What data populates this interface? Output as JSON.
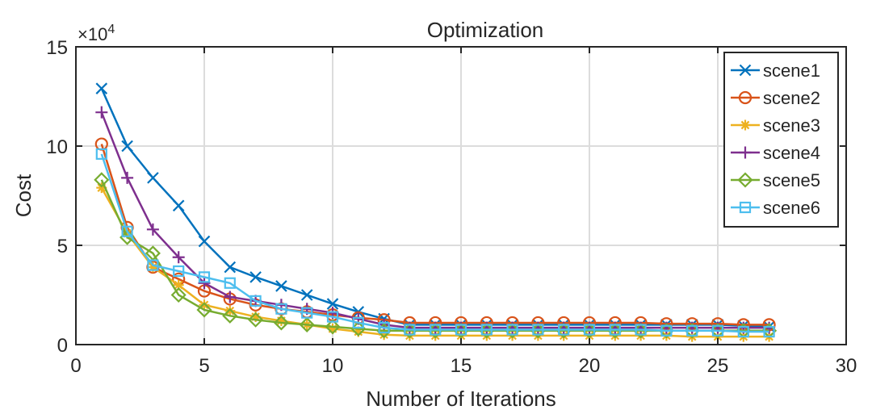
{
  "chart_data": {
    "type": "line",
    "title": "Optimization",
    "xlabel": "Number of Iterations",
    "ylabel": "Cost",
    "exponent_label": "×10",
    "exponent_power": "4",
    "xlim": [
      0,
      30
    ],
    "ylim": [
      0,
      15
    ],
    "y_scale_factor": 10000,
    "xticks": [
      0,
      5,
      10,
      15,
      20,
      25,
      30
    ],
    "yticks": [
      0,
      5,
      10,
      15
    ],
    "grid": true,
    "legend_position": "top-right",
    "x": [
      1,
      2,
      3,
      4,
      5,
      6,
      7,
      8,
      9,
      10,
      11,
      12,
      13,
      14,
      15,
      16,
      17,
      18,
      19,
      20,
      21,
      22,
      23,
      24,
      25,
      26,
      27
    ],
    "series": [
      {
        "name": "scene1",
        "color": "#0072BD",
        "marker": "x",
        "values": [
          12.9,
          10.0,
          8.4,
          7.0,
          5.2,
          3.9,
          3.4,
          2.95,
          2.5,
          2.05,
          1.65,
          1.3,
          1.0,
          1.0,
          1.0,
          1.0,
          1.0,
          1.0,
          1.0,
          1.0,
          1.0,
          1.0,
          1.0,
          1.0,
          1.0,
          0.95,
          0.9
        ]
      },
      {
        "name": "scene2",
        "color": "#D95319",
        "marker": "circle",
        "values": [
          10.1,
          5.9,
          3.9,
          3.3,
          2.7,
          2.3,
          2.0,
          1.8,
          1.65,
          1.5,
          1.35,
          1.25,
          1.1,
          1.1,
          1.1,
          1.1,
          1.1,
          1.1,
          1.1,
          1.1,
          1.1,
          1.1,
          1.05,
          1.05,
          1.05,
          1.0,
          1.0
        ]
      },
      {
        "name": "scene3",
        "color": "#EDB120",
        "marker": "asterisk",
        "values": [
          7.9,
          5.6,
          3.9,
          3.0,
          2.0,
          1.7,
          1.4,
          1.2,
          1.0,
          0.8,
          0.65,
          0.5,
          0.45,
          0.45,
          0.45,
          0.45,
          0.45,
          0.45,
          0.45,
          0.45,
          0.45,
          0.45,
          0.45,
          0.4,
          0.4,
          0.4,
          0.4
        ]
      },
      {
        "name": "scene4",
        "color": "#7E2F8E",
        "marker": "plus",
        "values": [
          11.7,
          8.4,
          5.8,
          4.4,
          3.1,
          2.4,
          2.2,
          2.0,
          1.8,
          1.6,
          1.3,
          1.0,
          0.85,
          0.85,
          0.85,
          0.85,
          0.85,
          0.85,
          0.85,
          0.85,
          0.85,
          0.85,
          0.85,
          0.85,
          0.85,
          0.85,
          0.85
        ]
      },
      {
        "name": "scene5",
        "color": "#77AC30",
        "marker": "diamond",
        "values": [
          8.3,
          5.4,
          4.6,
          2.5,
          1.75,
          1.45,
          1.25,
          1.1,
          1.0,
          0.9,
          0.8,
          0.7,
          0.7,
          0.7,
          0.7,
          0.7,
          0.7,
          0.7,
          0.7,
          0.7,
          0.7,
          0.7,
          0.7,
          0.7,
          0.7,
          0.7,
          0.7
        ]
      },
      {
        "name": "scene6",
        "color": "#4DBEEE",
        "marker": "square",
        "values": [
          9.6,
          5.7,
          4.0,
          3.7,
          3.4,
          3.1,
          2.2,
          1.8,
          1.6,
          1.4,
          1.1,
          0.85,
          0.75,
          0.75,
          0.75,
          0.75,
          0.75,
          0.75,
          0.75,
          0.75,
          0.75,
          0.75,
          0.7,
          0.7,
          0.7,
          0.65,
          0.65
        ]
      }
    ]
  }
}
